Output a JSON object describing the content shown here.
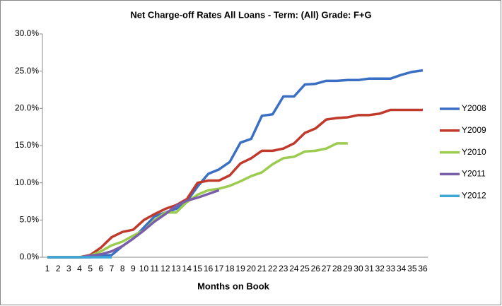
{
  "chart_data": {
    "type": "line",
    "title": "Net Charge-off Rates   All Loans - Term: (All)  Grade: F+G",
    "x_label": "Months on Book",
    "categories": [
      1,
      2,
      3,
      4,
      5,
      6,
      7,
      8,
      9,
      10,
      11,
      12,
      13,
      14,
      15,
      16,
      17,
      18,
      19,
      20,
      21,
      22,
      23,
      24,
      25,
      26,
      27,
      28,
      29,
      30,
      31,
      32,
      33,
      34,
      35,
      36
    ],
    "series": [
      {
        "name": "Y2008",
        "color": "#3a6fc4",
        "values": [
          0,
          0,
          0,
          0,
          0,
          0.2,
          0.3,
          1.5,
          2.5,
          4.0,
          5.5,
          6.0,
          6.5,
          7.5,
          9.5,
          11.2,
          11.8,
          12.8,
          15.4,
          15.9,
          19.0,
          19.2,
          21.6,
          21.6,
          23.2,
          23.3,
          23.7,
          23.7,
          23.8,
          23.8,
          24.0,
          24.0,
          24.0,
          24.5,
          24.9,
          25.1
        ]
      },
      {
        "name": "Y2009",
        "color": "#c0392b",
        "values": [
          0,
          0,
          0,
          0,
          0.3,
          1.3,
          2.7,
          3.4,
          3.7,
          5.0,
          5.8,
          6.5,
          7.0,
          7.8,
          10.0,
          10.3,
          10.3,
          11.0,
          12.6,
          13.3,
          14.3,
          14.3,
          14.6,
          15.3,
          16.7,
          17.3,
          18.5,
          18.7,
          18.8,
          19.1,
          19.1,
          19.3,
          19.8,
          19.8,
          19.8,
          19.8
        ]
      },
      {
        "name": "Y2010",
        "color": "#9bcc50",
        "values": [
          0,
          0,
          0,
          0,
          0.2,
          0.8,
          1.6,
          2.1,
          2.9,
          3.6,
          5.0,
          6.0,
          6.0,
          7.4,
          8.4,
          9.0,
          9.2,
          9.6,
          10.2,
          10.9,
          11.4,
          12.5,
          13.3,
          13.5,
          14.2,
          14.3,
          14.6,
          15.3,
          15.3,
          null,
          null,
          null,
          null,
          null,
          null,
          null
        ]
      },
      {
        "name": "Y2011",
        "color": "#7a5ea8",
        "values": [
          0,
          0,
          0,
          0,
          0.2,
          0.4,
          0.8,
          1.5,
          2.5,
          3.6,
          4.8,
          5.8,
          6.9,
          7.6,
          8.0,
          8.5,
          9.0,
          null,
          null,
          null,
          null,
          null,
          null,
          null,
          null,
          null,
          null,
          null,
          null,
          null,
          null,
          null,
          null,
          null,
          null,
          null
        ]
      },
      {
        "name": "Y2012",
        "color": "#3fa7d6",
        "values": [
          0,
          0,
          0,
          0,
          0,
          0,
          0,
          null,
          null,
          null,
          null,
          null,
          null,
          null,
          null,
          null,
          null,
          null,
          null,
          null,
          null,
          null,
          null,
          null,
          null,
          null,
          null,
          null,
          null,
          null,
          null,
          null,
          null,
          null,
          null,
          null
        ]
      }
    ],
    "ylim": [
      0,
      30
    ],
    "yticks": [
      {
        "value": 0,
        "label": "0.0%"
      },
      {
        "value": 5,
        "label": "5.0%"
      },
      {
        "value": 10,
        "label": "10.0%"
      },
      {
        "value": 15,
        "label": "15.0%"
      },
      {
        "value": 20,
        "label": "20.0%"
      },
      {
        "value": 25,
        "label": "25.0%"
      },
      {
        "value": 30,
        "label": "30.0%"
      }
    ],
    "grid": false,
    "legend": "right"
  }
}
